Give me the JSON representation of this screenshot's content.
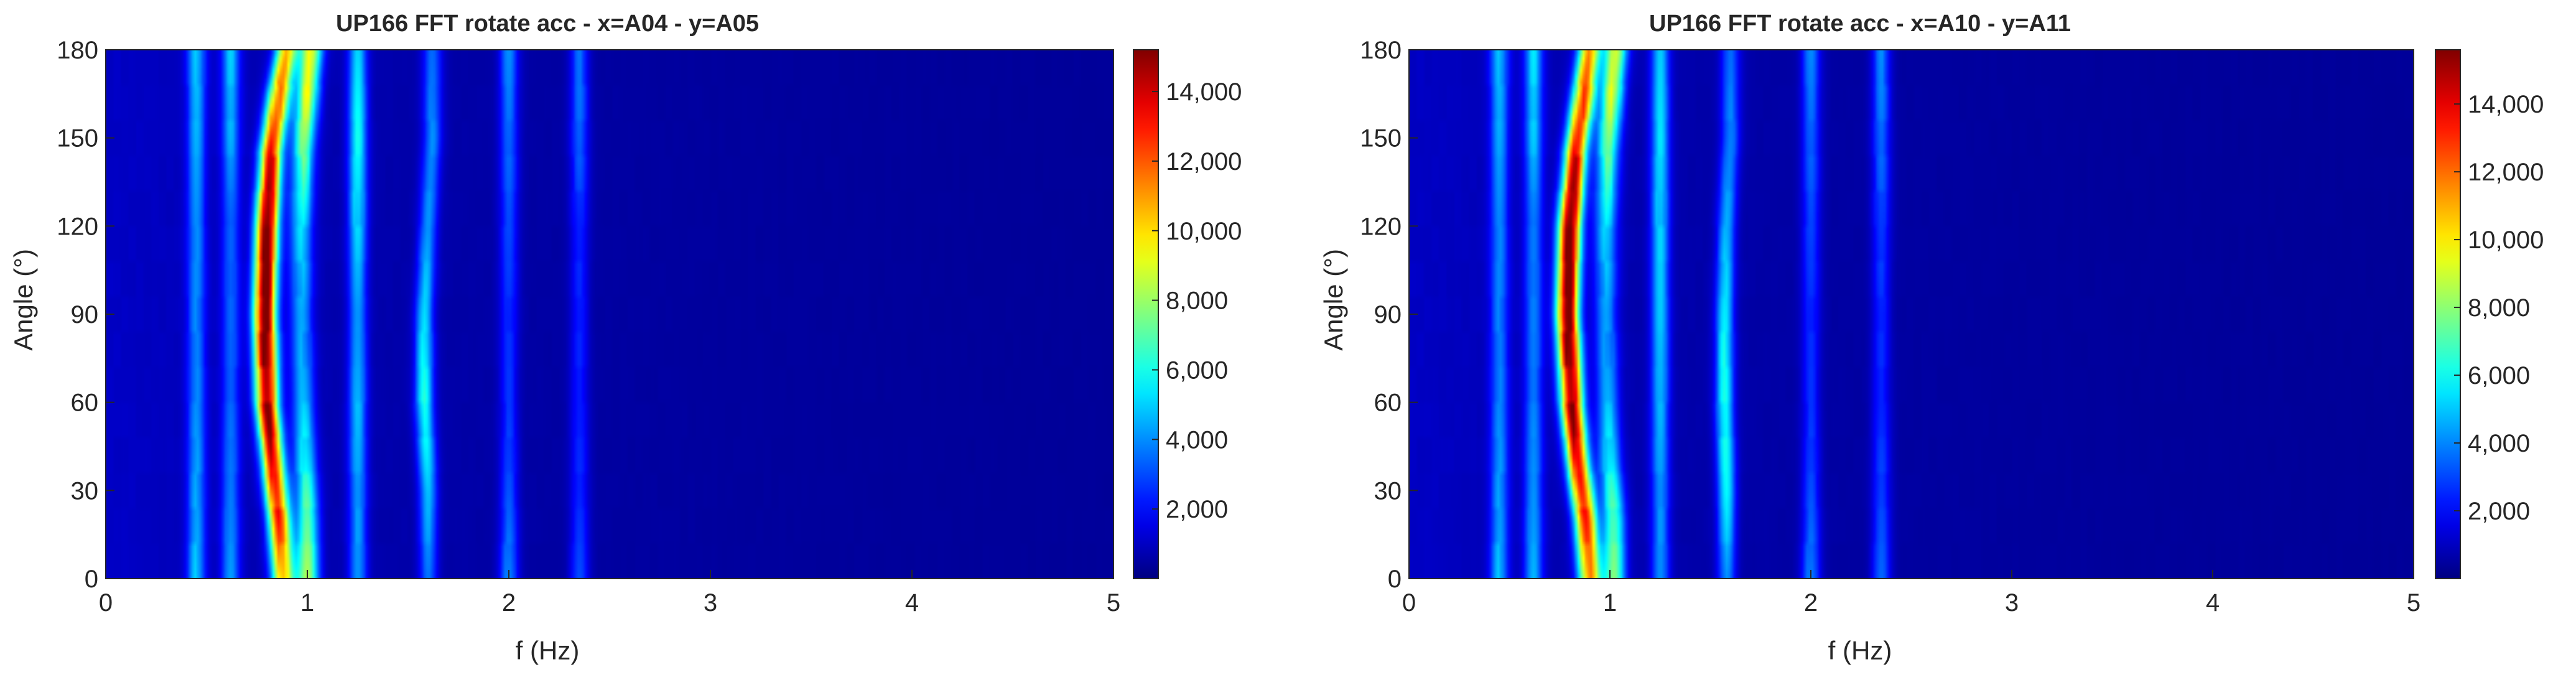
{
  "chart_data": [
    {
      "type": "heatmap",
      "title": "UP166 FFT rotate acc - x=A04 - y=A05",
      "xlabel": "f (Hz)",
      "ylabel": "Angle (°)",
      "xlim": [
        0,
        5
      ],
      "ylim": [
        0,
        180
      ],
      "x_ticks": [
        0,
        1,
        2,
        3,
        4,
        5
      ],
      "y_ticks": [
        0,
        30,
        60,
        90,
        120,
        150,
        180
      ],
      "colormap": "jet",
      "clim": [
        0,
        15200
      ],
      "colorbar_ticks": [
        "2,000",
        "4,000",
        "6,000",
        "8,000",
        "10,000",
        "12,000",
        "14,000"
      ],
      "colorbar_tick_values": [
        2000,
        4000,
        6000,
        8000,
        10000,
        12000,
        14000
      ],
      "ridges": [
        {
          "f": [
            0.88,
            0.86,
            0.83,
            0.8,
            0.79,
            0.8,
            0.82,
            0.86,
            0.9
          ],
          "angle": [
            0,
            20,
            40,
            60,
            90,
            120,
            145,
            165,
            180
          ],
          "peak_values": [
            10000,
            12000,
            13500,
            14500,
            15200,
            14500,
            13000,
            11000,
            10000
          ]
        },
        {
          "f": [
            1.0,
            1.0,
            0.99,
            0.98,
            0.97,
            0.97,
            0.98,
            1.0,
            1.02
          ],
          "angle": [
            0,
            20,
            40,
            60,
            90,
            120,
            145,
            165,
            180
          ],
          "peak_values": [
            7500,
            6500,
            5000,
            4000,
            3500,
            4500,
            6500,
            8500,
            9000
          ]
        },
        {
          "f": [
            0.45,
            0.45,
            0.45,
            0.45,
            0.45,
            0.45,
            0.45
          ],
          "angle": [
            0,
            30,
            60,
            90,
            120,
            150,
            180
          ],
          "peak_values": [
            4000,
            3500,
            3000,
            3000,
            3000,
            3500,
            4000
          ]
        },
        {
          "f": [
            0.62,
            0.62,
            0.62,
            0.62,
            0.62,
            0.62,
            0.62
          ],
          "angle": [
            0,
            30,
            60,
            90,
            120,
            150,
            180
          ],
          "peak_values": [
            3500,
            3000,
            2500,
            2500,
            2500,
            3500,
            4000
          ]
        },
        {
          "f": [
            1.25,
            1.25,
            1.25,
            1.25,
            1.25,
            1.25,
            1.25
          ],
          "angle": [
            0,
            30,
            60,
            90,
            120,
            150,
            180
          ],
          "peak_values": [
            3500,
            3500,
            4000,
            3500,
            4500,
            5500,
            4500
          ]
        },
        {
          "f": [
            1.6,
            1.6,
            1.58,
            1.58,
            1.6,
            1.62,
            1.62
          ],
          "angle": [
            0,
            30,
            60,
            90,
            120,
            150,
            180
          ],
          "peak_values": [
            3000,
            4000,
            5500,
            4500,
            3500,
            3500,
            3000
          ]
        },
        {
          "f": [
            2.0,
            2.0,
            2.0,
            2.0,
            2.0,
            2.0,
            2.0
          ],
          "angle": [
            0,
            30,
            60,
            90,
            120,
            150,
            180
          ],
          "peak_values": [
            3500,
            2500,
            2000,
            2000,
            2500,
            3000,
            3500
          ]
        },
        {
          "f": [
            2.35,
            2.35,
            2.35,
            2.35,
            2.35,
            2.35,
            2.35
          ],
          "angle": [
            0,
            30,
            60,
            90,
            120,
            150,
            180
          ],
          "peak_values": [
            2500,
            2000,
            1800,
            1800,
            2000,
            2800,
            3000
          ]
        }
      ]
    },
    {
      "type": "heatmap",
      "title": "UP166 FFT rotate acc - x=A10 - y=A11",
      "xlabel": "f (Hz)",
      "ylabel": "Angle (°)",
      "xlim": [
        0,
        5
      ],
      "ylim": [
        0,
        180
      ],
      "x_ticks": [
        0,
        1,
        2,
        3,
        4,
        5
      ],
      "y_ticks": [
        0,
        30,
        60,
        90,
        120,
        150,
        180
      ],
      "colormap": "jet",
      "clim": [
        0,
        15600
      ],
      "colorbar_ticks": [
        "2,000",
        "4,000",
        "6,000",
        "8,000",
        "10,000",
        "12,000",
        "14,000"
      ],
      "colorbar_tick_values": [
        2000,
        4000,
        6000,
        8000,
        10000,
        12000,
        14000
      ],
      "ridges": [
        {
          "f": [
            0.9,
            0.88,
            0.84,
            0.81,
            0.79,
            0.8,
            0.83,
            0.87,
            0.9
          ],
          "angle": [
            0,
            20,
            40,
            60,
            90,
            120,
            145,
            165,
            180
          ],
          "peak_values": [
            11000,
            12500,
            14000,
            15000,
            15600,
            15000,
            13500,
            12000,
            11000
          ]
        },
        {
          "f": [
            1.02,
            1.02,
            1.0,
            0.99,
            0.98,
            0.98,
            0.99,
            1.01,
            1.03
          ],
          "angle": [
            0,
            20,
            40,
            60,
            90,
            120,
            145,
            165,
            180
          ],
          "peak_values": [
            7000,
            6500,
            5000,
            4000,
            3500,
            4500,
            6500,
            8500,
            9000
          ]
        },
        {
          "f": [
            0.45,
            0.45,
            0.45,
            0.45,
            0.45,
            0.45,
            0.45
          ],
          "angle": [
            0,
            30,
            60,
            90,
            120,
            150,
            180
          ],
          "peak_values": [
            4000,
            3500,
            3000,
            3000,
            3000,
            3500,
            4000
          ]
        },
        {
          "f": [
            0.62,
            0.62,
            0.62,
            0.62,
            0.62,
            0.62,
            0.62
          ],
          "angle": [
            0,
            30,
            60,
            90,
            120,
            150,
            180
          ],
          "peak_values": [
            4000,
            3500,
            3000,
            3000,
            3000,
            4000,
            4500
          ]
        },
        {
          "f": [
            1.25,
            1.25,
            1.25,
            1.25,
            1.25,
            1.25,
            1.25
          ],
          "angle": [
            0,
            30,
            60,
            90,
            120,
            150,
            180
          ],
          "peak_values": [
            3500,
            3500,
            4000,
            4500,
            4500,
            5000,
            4500
          ]
        },
        {
          "f": [
            1.58,
            1.58,
            1.57,
            1.57,
            1.58,
            1.6,
            1.6
          ],
          "angle": [
            0,
            30,
            60,
            90,
            120,
            150,
            180
          ],
          "peak_values": [
            3500,
            5000,
            5500,
            5000,
            4000,
            3500,
            3000
          ]
        },
        {
          "f": [
            2.0,
            2.0,
            2.0,
            2.0,
            2.0,
            2.0,
            2.0
          ],
          "angle": [
            0,
            30,
            60,
            90,
            120,
            150,
            180
          ],
          "peak_values": [
            3500,
            2500,
            2000,
            2000,
            2500,
            3000,
            3500
          ]
        },
        {
          "f": [
            2.35,
            2.35,
            2.35,
            2.35,
            2.35,
            2.35,
            2.35
          ],
          "angle": [
            0,
            30,
            60,
            90,
            120,
            150,
            180
          ],
          "peak_values": [
            3000,
            2500,
            2000,
            2000,
            2500,
            3000,
            3500
          ]
        }
      ]
    }
  ]
}
